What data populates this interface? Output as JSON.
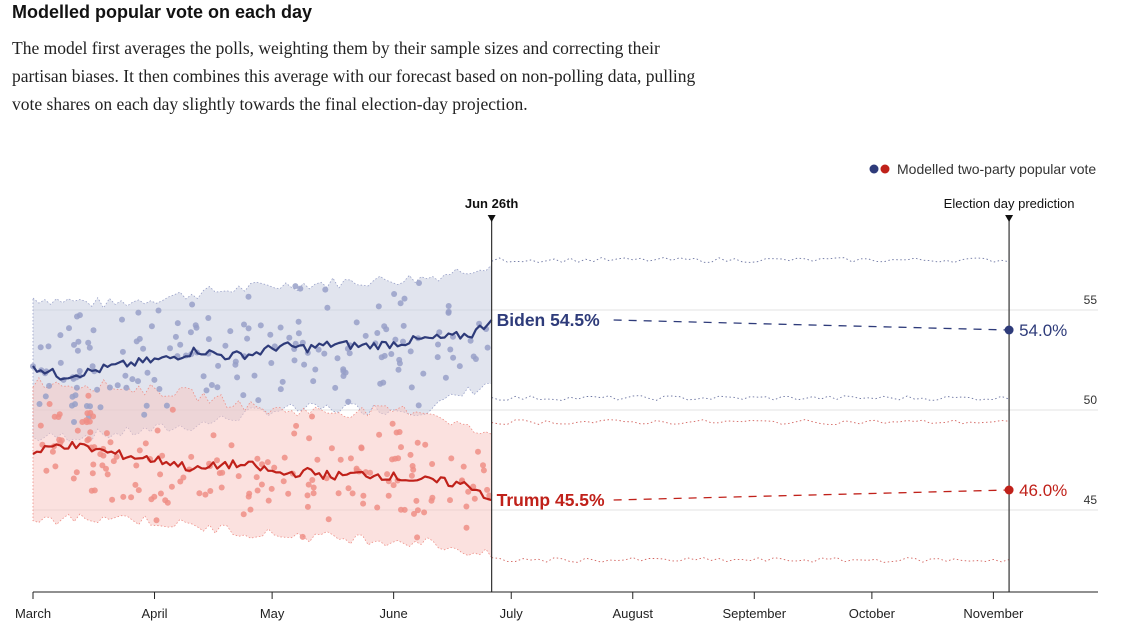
{
  "header": {
    "title": "Modelled popular vote on each day",
    "subtitle": "The model first averages the polls, weighting them by their sample sizes and correcting their partisan biases. It then combines this average with our forecast based on non-polling data, pulling vote shares on each day slightly towards the final election-day projection."
  },
  "legend": {
    "label": "Modelled two-party popular vote"
  },
  "chart_data": {
    "type": "line",
    "title": "Modelled popular vote on each day",
    "x_axis": {
      "tick_labels": [
        "March",
        "April",
        "May",
        "June",
        "July",
        "August",
        "September",
        "October",
        "November"
      ],
      "start": "Mar 1",
      "end": "Nov 30"
    },
    "y_axis": {
      "ticks": [
        45,
        50,
        55
      ],
      "ylim": [
        41,
        57
      ],
      "grid": true,
      "side": "right"
    },
    "markers": [
      {
        "label": "Jun 26th",
        "date": "Jun 26"
      },
      {
        "label": "Election day prediction",
        "date": "Nov 5"
      }
    ],
    "series": [
      {
        "name": "Biden",
        "color": "#2e3b7a",
        "band_color": "#c9cde0",
        "dot_color": "#98a0c8",
        "current_label": "Biden 54.5%",
        "current_value": 54.5,
        "prediction_label": "54.0%",
        "prediction_value": 54.0,
        "model_points": [
          [
            0,
            52.2
          ],
          [
            7,
            51.7
          ],
          [
            14,
            51.9
          ],
          [
            21,
            52.2
          ],
          [
            28,
            52.4
          ],
          [
            35,
            52.6
          ],
          [
            42,
            53.0
          ],
          [
            49,
            52.7
          ],
          [
            56,
            52.8
          ],
          [
            63,
            53.2
          ],
          [
            70,
            53.1
          ],
          [
            77,
            53.3
          ],
          [
            84,
            53.2
          ],
          [
            91,
            53.3
          ],
          [
            98,
            53.5
          ],
          [
            105,
            53.6
          ],
          [
            112,
            53.8
          ],
          [
            117,
            54.5
          ]
        ],
        "band_upper": [
          [
            0,
            55.6
          ],
          [
            20,
            55.3
          ],
          [
            40,
            55.8
          ],
          [
            60,
            56.2
          ],
          [
            80,
            56.4
          ],
          [
            100,
            56.6
          ],
          [
            117,
            57.3
          ]
        ],
        "band_lower": [
          [
            0,
            48.6
          ],
          [
            20,
            48.8
          ],
          [
            40,
            49.2
          ],
          [
            60,
            50.0
          ],
          [
            80,
            50.1
          ],
          [
            100,
            50.0
          ],
          [
            117,
            51.4
          ]
        ],
        "future_upper": 57.5,
        "future_lower": 50.6
      },
      {
        "name": "Trump",
        "color": "#c0211a",
        "band_color": "#f7c9c4",
        "dot_color": "#ee8e86",
        "current_label": "Trump 45.5%",
        "current_value": 45.5,
        "prediction_label": "46.0%",
        "prediction_value": 46.0,
        "model_points": [
          [
            0,
            47.8
          ],
          [
            7,
            48.3
          ],
          [
            14,
            48.1
          ],
          [
            21,
            47.8
          ],
          [
            28,
            47.6
          ],
          [
            35,
            47.4
          ],
          [
            42,
            47.0
          ],
          [
            49,
            47.3
          ],
          [
            56,
            47.2
          ],
          [
            63,
            46.8
          ],
          [
            70,
            46.9
          ],
          [
            77,
            46.7
          ],
          [
            84,
            46.8
          ],
          [
            91,
            46.7
          ],
          [
            98,
            46.5
          ],
          [
            105,
            46.4
          ],
          [
            112,
            46.2
          ],
          [
            117,
            45.5
          ]
        ],
        "band_upper": [
          [
            0,
            51.4
          ],
          [
            20,
            51.2
          ],
          [
            40,
            50.8
          ],
          [
            60,
            50.0
          ],
          [
            80,
            49.9
          ],
          [
            100,
            50.0
          ],
          [
            117,
            48.6
          ]
        ],
        "band_lower": [
          [
            0,
            44.4
          ],
          [
            20,
            44.7
          ],
          [
            40,
            44.2
          ],
          [
            60,
            43.8
          ],
          [
            80,
            43.6
          ],
          [
            100,
            43.4
          ],
          [
            117,
            42.7
          ]
        ],
        "future_upper": 49.4,
        "future_lower": 42.5
      }
    ]
  }
}
